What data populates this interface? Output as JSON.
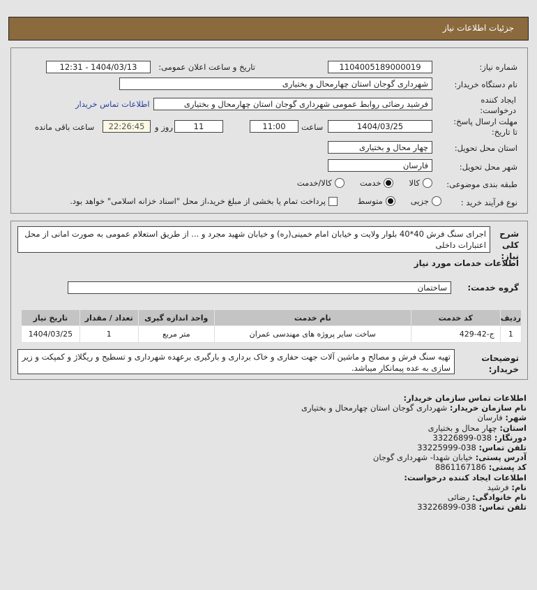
{
  "header": {
    "title": "جزئیات اطلاعات نیاز"
  },
  "form": {
    "need_number_label": "شماره نیاز:",
    "need_number": "1104005189000019",
    "announce_label": "تاریخ و ساعت اعلان عمومی:",
    "announce_value": "1404/03/13 - 12:31",
    "buyer_name_label": "نام دستگاه خریدار:",
    "buyer_name": "شهرداری گوجان استان چهارمحال و بختیاری",
    "creator_label": "ایجاد کننده درخواست:",
    "creator": "فرشید رضائی روابط عمومی شهرداری گوجان استان چهارمحال و بختیاری",
    "contact_link": "اطلاعات تماس خریدار",
    "deadline_label": "مهلت ارسال پاسخ: تا تاریخ:",
    "deadline_date": "1404/03/25",
    "time_label": "ساعت",
    "deadline_time": "11:00",
    "days": "11",
    "days_label": "روز و",
    "remaining": "22:26:45",
    "remaining_label": "ساعت باقی مانده",
    "province_label": "استان محل تحویل:",
    "province": "چهار محال و بختیاری",
    "city_label": "شهر محل تحویل:",
    "city": "فارسان",
    "category_label": "طبقه بندی موضوعی:",
    "category_options": [
      "کالا",
      "خدمت",
      "کالا/خدمت"
    ],
    "category_selected": "خدمت",
    "process_label": "نوع فرآیند خرید :",
    "process_options": [
      "جزیی",
      "متوسط"
    ],
    "process_selected": "متوسط",
    "payment_note": "پرداخت تمام یا بخشی از مبلغ خرید،از محل \"اسناد خزانه اسلامی\" خواهد بود."
  },
  "details": {
    "description_label": "شرح کلی نیاز:",
    "description": "اجرای سنگ فرش 40*40 بلوار ولایت و خیابان امام خمینی(ره) و خیابان شهید مجرد و ... از طریق استعلام عمومی به صورت امانی از محل اعتبارات داخلی",
    "services_title": "اطلاعات خدمات مورد نیاز",
    "service_group_label": "گروه خدمت:",
    "service_group": "ساختمان",
    "table": {
      "headers": [
        "ردیف",
        "کد خدمت",
        "نام خدمت",
        "واحد اندازه گیری",
        "تعداد / مقدار",
        "تاریخ نیاز"
      ],
      "rows": [
        [
          "1",
          "ج-42-429",
          "ساخت سایر پروژه های مهندسی عمران",
          "متر مربع",
          "1",
          "1404/03/25"
        ]
      ]
    },
    "buyer_notes_label": "توضیحات خریدار:",
    "buyer_notes": "تهیه سنگ فرش و مصالح و ماشین آلات جهت حفاری و خاک برداری و بارگیری برعهده شهرداری و تسطیح و ریگلاژ و کمپکت و زیر سازی به عده پیمانکار میباشد."
  },
  "contact": {
    "title": "اطلاعات تماس سازمان خریدار:",
    "items": [
      {
        "label": "نام سازمان خریدار:",
        "value": "شهرداری گوجان استان چهارمحال و بختیاری"
      },
      {
        "label": "شهر:",
        "value": "فارسان"
      },
      {
        "label": "استان:",
        "value": "چهار محال و بختیاری"
      },
      {
        "label": "دورنگار:",
        "value": "038-33226899"
      },
      {
        "label": "تلفن تماس:",
        "value": "038-33225999"
      },
      {
        "label": "آدرس پستی:",
        "value": "خیابان شهدا- شهرداری گوجان"
      },
      {
        "label": "کد پستی:",
        "value": "8861167186"
      }
    ],
    "creator_title": "اطلاعات ایجاد کننده درخواست:",
    "creator_items": [
      {
        "label": "نام:",
        "value": "فرشید"
      },
      {
        "label": "نام خانوادگی:",
        "value": "رضائی"
      },
      {
        "label": "تلفن تماس:",
        "value": "038-33226899"
      }
    ]
  }
}
